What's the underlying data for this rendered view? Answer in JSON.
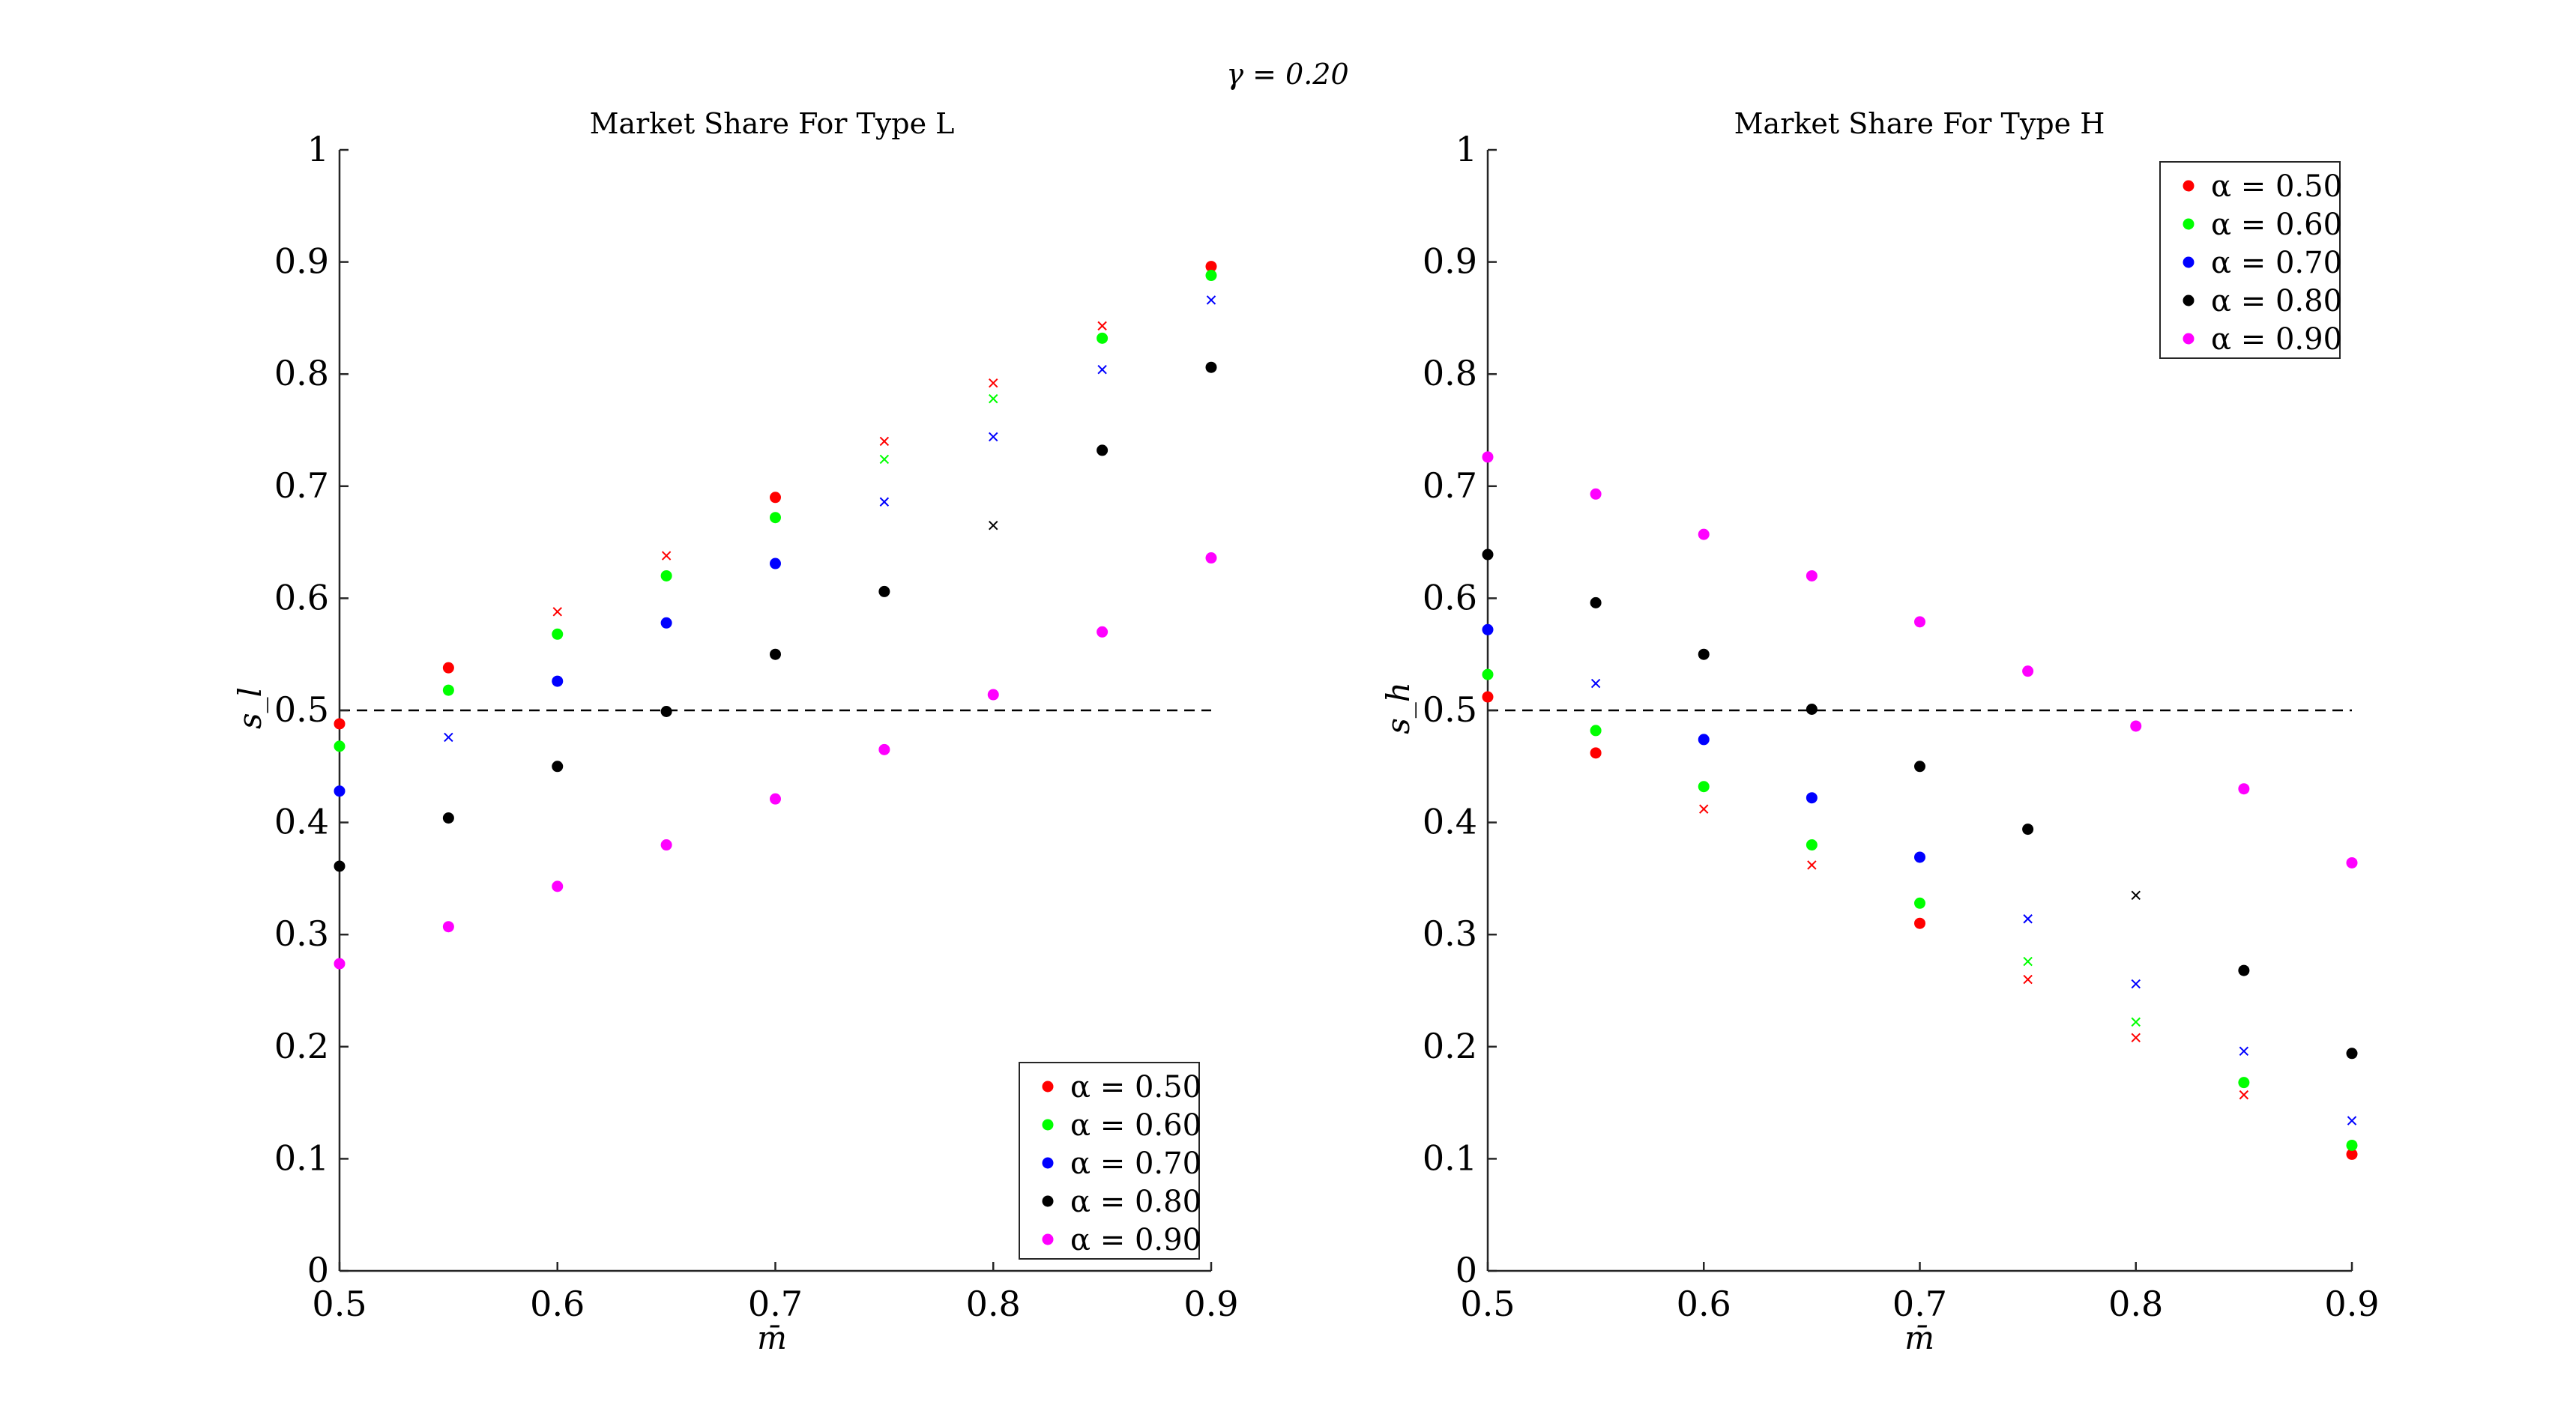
{
  "figure": {
    "suptitle": "γ = 0.20"
  },
  "chart_data": [
    {
      "type": "scatter",
      "title": "Market Share For Type L",
      "xlabel": "m̄",
      "ylabel": "s_l",
      "xlim": [
        0.5,
        0.9
      ],
      "ylim": [
        0,
        1
      ],
      "xticks": [
        "0.5",
        "0.6",
        "0.7",
        "0.8",
        "0.9"
      ],
      "yticks": [
        "0",
        "0.1",
        "0.2",
        "0.3",
        "0.4",
        "0.5",
        "0.6",
        "0.7",
        "0.8",
        "0.9",
        "1"
      ],
      "reference_line": {
        "y": 0.5,
        "style": "dashed"
      },
      "legend_position": "bottom-right",
      "x": [
        0.5,
        0.55,
        0.6,
        0.65,
        0.7,
        0.75,
        0.8,
        0.85,
        0.9
      ],
      "series": [
        {
          "name": "α = 0.50",
          "color": "#ff0000",
          "values": [
            0.488,
            0.538,
            0.588,
            0.638,
            0.69,
            0.74,
            0.792,
            0.843,
            0.896
          ],
          "markers": [
            "dot",
            "dot",
            "x",
            "x",
            "dot",
            "x",
            "x",
            "x",
            "dot"
          ]
        },
        {
          "name": "α = 0.60",
          "color": "#00ff00",
          "values": [
            0.468,
            0.518,
            0.568,
            0.62,
            0.672,
            0.724,
            0.778,
            0.832,
            0.888
          ],
          "markers": [
            "dot",
            "dot",
            "dot",
            "dot",
            "dot",
            "x",
            "x",
            "dot",
            "dot"
          ]
        },
        {
          "name": "α = 0.70",
          "color": "#0000ff",
          "values": [
            0.428,
            0.476,
            0.526,
            0.578,
            0.631,
            0.686,
            0.744,
            0.804,
            0.866
          ],
          "markers": [
            "dot",
            "x",
            "dot",
            "dot",
            "dot",
            "x",
            "x",
            "x",
            "x"
          ]
        },
        {
          "name": "α = 0.80",
          "color": "#000000",
          "values": [
            0.361,
            0.404,
            0.45,
            0.499,
            0.55,
            0.606,
            0.665,
            0.732,
            0.806
          ],
          "markers": [
            "dot",
            "dot",
            "dot",
            "dot",
            "dot",
            "dot",
            "x",
            "dot",
            "dot"
          ]
        },
        {
          "name": "α = 0.90",
          "color": "#ff00ff",
          "values": [
            0.274,
            0.307,
            0.343,
            0.38,
            0.421,
            0.465,
            0.514,
            0.57,
            0.636
          ],
          "markers": [
            "dot",
            "dot",
            "dot",
            "dot",
            "dot",
            "dot",
            "dot",
            "dot",
            "dot"
          ]
        }
      ]
    },
    {
      "type": "scatter",
      "title": "Market Share For Type H",
      "xlabel": "m̄",
      "ylabel": "s_h",
      "xlim": [
        0.5,
        0.9
      ],
      "ylim": [
        0,
        1
      ],
      "xticks": [
        "0.5",
        "0.6",
        "0.7",
        "0.8",
        "0.9"
      ],
      "yticks": [
        "0",
        "0.1",
        "0.2",
        "0.3",
        "0.4",
        "0.5",
        "0.6",
        "0.7",
        "0.8",
        "0.9",
        "1"
      ],
      "reference_line": {
        "y": 0.5,
        "style": "dashed"
      },
      "legend_position": "top-right",
      "x": [
        0.5,
        0.55,
        0.6,
        0.65,
        0.7,
        0.75,
        0.8,
        0.85,
        0.9
      ],
      "series": [
        {
          "name": "α = 0.50",
          "color": "#ff0000",
          "values": [
            0.512,
            0.462,
            0.412,
            0.362,
            0.31,
            0.26,
            0.208,
            0.157,
            0.104
          ],
          "markers": [
            "dot",
            "dot",
            "x",
            "x",
            "dot",
            "x",
            "x",
            "x",
            "dot"
          ]
        },
        {
          "name": "α = 0.60",
          "color": "#00ff00",
          "values": [
            0.532,
            0.482,
            0.432,
            0.38,
            0.328,
            0.276,
            0.222,
            0.168,
            0.112
          ],
          "markers": [
            "dot",
            "dot",
            "dot",
            "dot",
            "dot",
            "x",
            "x",
            "dot",
            "dot"
          ]
        },
        {
          "name": "α = 0.70",
          "color": "#0000ff",
          "values": [
            0.572,
            0.524,
            0.474,
            0.422,
            0.369,
            0.314,
            0.256,
            0.196,
            0.134
          ],
          "markers": [
            "dot",
            "x",
            "dot",
            "dot",
            "dot",
            "x",
            "x",
            "x",
            "x"
          ]
        },
        {
          "name": "α = 0.80",
          "color": "#000000",
          "values": [
            0.639,
            0.596,
            0.55,
            0.501,
            0.45,
            0.394,
            0.335,
            0.268,
            0.194
          ],
          "markers": [
            "dot",
            "dot",
            "dot",
            "dot",
            "dot",
            "dot",
            "x",
            "dot",
            "dot"
          ]
        },
        {
          "name": "α = 0.90",
          "color": "#ff00ff",
          "values": [
            0.726,
            0.693,
            0.657,
            0.62,
            0.579,
            0.535,
            0.486,
            0.43,
            0.364
          ],
          "markers": [
            "dot",
            "dot",
            "dot",
            "dot",
            "dot",
            "dot",
            "dot",
            "dot",
            "dot"
          ]
        }
      ]
    }
  ]
}
